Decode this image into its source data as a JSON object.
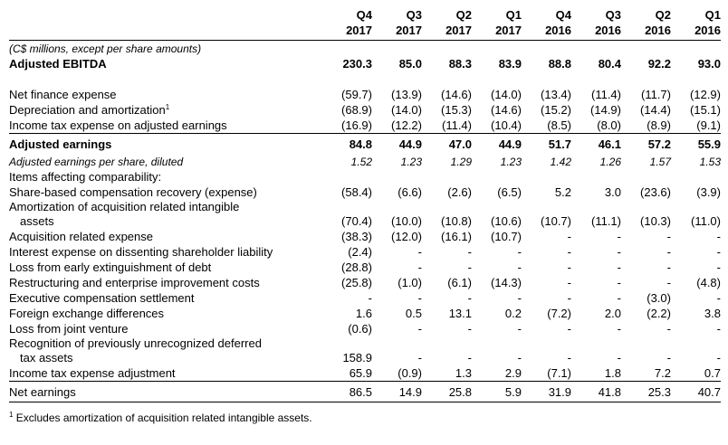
{
  "table": {
    "columns": [
      {
        "quarter": "Q4",
        "year": "2017"
      },
      {
        "quarter": "Q3",
        "year": "2017"
      },
      {
        "quarter": "Q2",
        "year": "2017"
      },
      {
        "quarter": "Q1",
        "year": "2017"
      },
      {
        "quarter": "Q4",
        "year": "2016"
      },
      {
        "quarter": "Q3",
        "year": "2016"
      },
      {
        "quarter": "Q2",
        "year": "2016"
      },
      {
        "quarter": "Q1",
        "year": "2016"
      }
    ],
    "note": "(C$ millions, except per share amounts)",
    "rows": [
      {
        "label": "Adjusted EBITDA",
        "style": "bold",
        "values": [
          "230.3",
          "85.0",
          "88.3",
          "83.9",
          "88.8",
          "80.4",
          "92.2",
          "93.0"
        ]
      },
      {
        "label": "Net finance expense",
        "gap_above": true,
        "values": [
          "(59.7)",
          "(13.9)",
          "(14.6)",
          "(14.0)",
          "(13.4)",
          "(11.4)",
          "(11.7)",
          "(12.9)"
        ]
      },
      {
        "label": "Depreciation and amortization",
        "footnote_ref": "1",
        "values": [
          "(68.9)",
          "(14.0)",
          "(15.3)",
          "(14.6)",
          "(15.2)",
          "(14.9)",
          "(14.4)",
          "(15.1)"
        ]
      },
      {
        "label": "Income tax expense on adjusted earnings",
        "values": [
          "(16.9)",
          "(12.2)",
          "(11.4)",
          "(10.4)",
          "(8.5)",
          "(8.0)",
          "(8.9)",
          "(9.1)"
        ]
      },
      {
        "label": "Adjusted earnings",
        "style": "bold",
        "rule_above": true,
        "values": [
          "84.8",
          "44.9",
          "47.0",
          "44.9",
          "51.7",
          "46.1",
          "57.2",
          "55.9"
        ]
      },
      {
        "label": "Adjusted earnings per share, diluted",
        "style": "italic",
        "values": [
          "1.52",
          "1.23",
          "1.29",
          "1.23",
          "1.42",
          "1.26",
          "1.57",
          "1.53"
        ]
      },
      {
        "label": "Items affecting comparability:",
        "values": []
      },
      {
        "label": "Share-based compensation recovery (expense)",
        "values": [
          "(58.4)",
          "(6.6)",
          "(2.6)",
          "(6.5)",
          "5.2",
          "3.0",
          "(23.6)",
          "(3.9)"
        ]
      },
      {
        "label": [
          "Amortization of acquisition related intangible",
          "assets"
        ],
        "values": [
          "(70.4)",
          "(10.0)",
          "(10.8)",
          "(10.6)",
          "(10.7)",
          "(11.1)",
          "(10.3)",
          "(11.0)"
        ]
      },
      {
        "label": "Acquisition related expense",
        "values": [
          "(38.3)",
          "(12.0)",
          "(16.1)",
          "(10.7)",
          "-",
          "-",
          "-",
          "-"
        ]
      },
      {
        "label": "Interest expense on dissenting shareholder liability",
        "values": [
          "(2.4)",
          "-",
          "-",
          "-",
          "-",
          "-",
          "-",
          "-"
        ]
      },
      {
        "label": "Loss from early extinguishment of debt",
        "values": [
          "(28.8)",
          "-",
          "-",
          "-",
          "-",
          "-",
          "-",
          "-"
        ]
      },
      {
        "label": "Restructuring and enterprise improvement costs",
        "values": [
          "(25.8)",
          "(1.0)",
          "(6.1)",
          "(14.3)",
          "-",
          "-",
          "-",
          "(4.8)"
        ]
      },
      {
        "label": "Executive compensation settlement",
        "values": [
          "-",
          "-",
          "-",
          "-",
          "-",
          "-",
          "(3.0)",
          "-"
        ]
      },
      {
        "label": "Foreign exchange differences",
        "values": [
          "1.6",
          "0.5",
          "13.1",
          "0.2",
          "(7.2)",
          "2.0",
          "(2.2)",
          "3.8"
        ]
      },
      {
        "label": "Loss from joint venture",
        "values": [
          "(0.6)",
          "-",
          "-",
          "-",
          "-",
          "-",
          "-",
          "-"
        ]
      },
      {
        "label": [
          "Recognition of previously unrecognized deferred",
          "tax assets"
        ],
        "values": [
          "158.9",
          "-",
          "-",
          "-",
          "-",
          "-",
          "-",
          "-"
        ]
      },
      {
        "label": "Income tax expense adjustment",
        "values": [
          "65.9",
          "(0.9)",
          "1.3",
          "2.9",
          "(7.1)",
          "1.8",
          "7.2",
          "0.7"
        ]
      },
      {
        "label": "Net earnings",
        "rule_above": true,
        "rule_below": true,
        "values": [
          "86.5",
          "14.9",
          "25.8",
          "5.9",
          "31.9",
          "41.8",
          "25.3",
          "40.7"
        ]
      }
    ]
  },
  "footnote": {
    "marker": "1",
    "text": "Excludes amortization of acquisition related intangible assets."
  }
}
